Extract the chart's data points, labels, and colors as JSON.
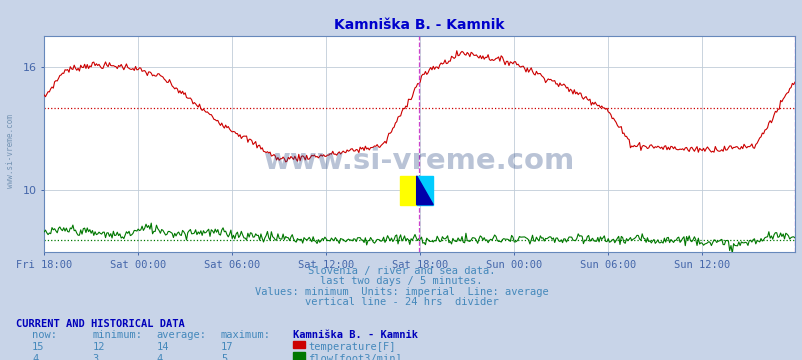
{
  "title": "Kamniška B. - Kamnik",
  "title_color": "#0000cc",
  "bg_color": "#c8d4e8",
  "plot_bg_color": "#ffffff",
  "grid_color": "#c0ccd8",
  "axis_color": "#4466aa",
  "xlim": [
    0,
    575
  ],
  "ylim": [
    7,
    17.5
  ],
  "yticks": [
    10,
    16
  ],
  "temp_color": "#cc0000",
  "flow_color": "#007700",
  "vline_color": "#cc44cc",
  "vline_x": 287,
  "end_vline_x": 575,
  "avg_temp": 14.0,
  "avg_flow_scaled": 7.6,
  "xtick_labels": [
    "Fri 18:00",
    "Sat 00:00",
    "Sat 06:00",
    "Sat 12:00",
    "Sat 18:00",
    "Sun 00:00",
    "Sun 06:00",
    "Sun 12:00"
  ],
  "xtick_positions": [
    0,
    72,
    144,
    216,
    288,
    360,
    432,
    504
  ],
  "subtitle_lines": [
    "Slovenia / river and sea data.",
    "last two days / 5 minutes.",
    "Values: minimum  Units: imperial  Line: average",
    "vertical line - 24 hrs  divider"
  ],
  "subtitle_color": "#4488bb",
  "footer_header_color": "#0000bb",
  "footer_label_color": "#4488bb",
  "footer_value_color": "#4488bb",
  "watermark_text": "www.si-vreme.com",
  "watermark_color": "#1a3a7a",
  "watermark_alpha": 0.3,
  "side_watermark_color": "#6688aa",
  "current_temp": 15,
  "min_temp": 12,
  "avg_temp_val": 14,
  "max_temp": 17,
  "current_flow": 4,
  "min_flow": 3,
  "avg_flow_val": 4,
  "max_flow": 5,
  "logo_yellow": "#ffff00",
  "logo_cyan": "#00ccff",
  "logo_blue": "#0000aa"
}
